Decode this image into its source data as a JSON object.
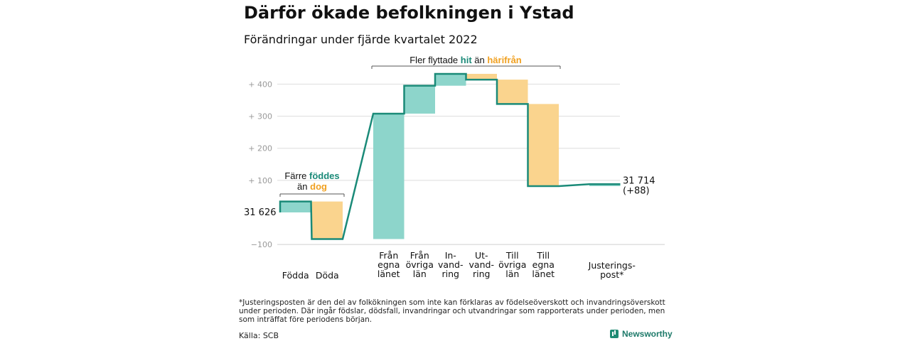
{
  "title": "Därför ökade befolkningen i Ystad",
  "subtitle": "Förändringar under fjärde kvartalet 2022",
  "footnote": "*Justeringsposten är den del av folkökningen som inte kan förklaras av födelseöverskott och invandringsöverskott under perioden. Där ingår födslar, dödsfall, invandringar och utvandringar som rapporterats under perioden, men som inträffat före periodens början.",
  "source": "Källa: SCB",
  "logo_text": "Newsworthy",
  "colors": {
    "increase": "#8dd5cb",
    "decrease": "#fad48e",
    "line": "#1a8a78",
    "hit": "#1a8a78",
    "harifran": "#f0a020",
    "grid": "#dddddd",
    "axis_text": "#999999"
  },
  "chart_data": {
    "type": "waterfall",
    "start_value": 31626,
    "start_label": "31 626",
    "end_label": "31 714",
    "end_change_label": "(+88)",
    "y_ticks": [
      -100,
      100,
      200,
      300,
      400
    ],
    "y_tick_labels": [
      "−100",
      "+ 100",
      "+ 200",
      "+ 300",
      "+ 400"
    ],
    "ylim": [
      -120,
      430
    ],
    "categories": [
      {
        "label": "Födda",
        "change": 34
      },
      {
        "label": "Döda",
        "change": -117
      },
      {
        "label": "Från egna länet",
        "change": 391
      },
      {
        "label": "Från övriga län",
        "change": 87
      },
      {
        "label": "In-vandring",
        "change": 37
      },
      {
        "label": "Ut-vandring",
        "change": -18
      },
      {
        "label": "Till övriga län",
        "change": -76
      },
      {
        "label": "Till egna länet",
        "change": -256
      },
      {
        "label": "Justerings-post*",
        "change": 6
      }
    ],
    "x_label_lines": [
      [
        "Födda"
      ],
      [
        "Döda"
      ],
      [
        "Från",
        "egna",
        "länet"
      ],
      [
        "Från",
        "övriga",
        "län"
      ],
      [
        "In-",
        "vand-",
        "ring"
      ],
      [
        "Ut-",
        "vand-",
        "ring"
      ],
      [
        "Till",
        "övriga",
        "län"
      ],
      [
        "Till",
        "egna",
        "länet"
      ],
      [
        "Justerings-",
        "post*"
      ]
    ],
    "annotations": {
      "left": {
        "text1": "Färre ",
        "highlight1": "föddes",
        "text2": "än ",
        "highlight2": "dog"
      },
      "right": {
        "text1": "Fler flyttade ",
        "highlight1": "hit",
        "text2": " än ",
        "highlight2": "härifrån"
      }
    }
  }
}
